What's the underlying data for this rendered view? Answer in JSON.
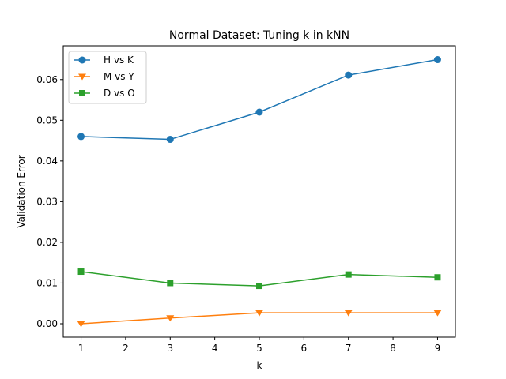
{
  "chart_data": {
    "type": "line",
    "title": "Normal Dataset: Tuning k in kNN",
    "xlabel": "k",
    "ylabel": "Validation Error",
    "xlim": [
      0.6,
      9.4
    ],
    "ylim": [
      -0.0033,
      0.0683
    ],
    "xticks": [
      1,
      2,
      3,
      4,
      5,
      6,
      7,
      8,
      9
    ],
    "yticks": [
      0.0,
      0.01,
      0.02,
      0.03,
      0.04,
      0.05,
      0.06
    ],
    "ytick_labels": [
      "0.00",
      "0.01",
      "0.02",
      "0.03",
      "0.04",
      "0.05",
      "0.06"
    ],
    "grid": false,
    "legend_position": "top-left",
    "x": [
      1,
      3,
      5,
      7,
      9
    ],
    "series": [
      {
        "name": "H vs K",
        "color": "#1f77b4",
        "marker": "circle",
        "values": [
          0.046,
          0.0453,
          0.052,
          0.0611,
          0.0649
        ]
      },
      {
        "name": "M vs Y",
        "color": "#ff7f0e",
        "marker": "triangle-down",
        "values": [
          0.0,
          0.0014,
          0.0027,
          0.0027,
          0.0027
        ]
      },
      {
        "name": "D vs O",
        "color": "#2ca02c",
        "marker": "square",
        "values": [
          0.0128,
          0.01,
          0.0093,
          0.0121,
          0.0114
        ]
      }
    ]
  }
}
